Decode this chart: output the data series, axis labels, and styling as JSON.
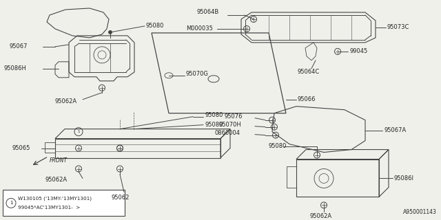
{
  "bg_color": "#f0f0eb",
  "line_color": "#444444",
  "text_color": "#222222",
  "diagram_id": "A950001143",
  "note_text1": "W130105 ('13MY-'13MY1301)",
  "note_text2": "99045*AC'13MY1301-  >"
}
